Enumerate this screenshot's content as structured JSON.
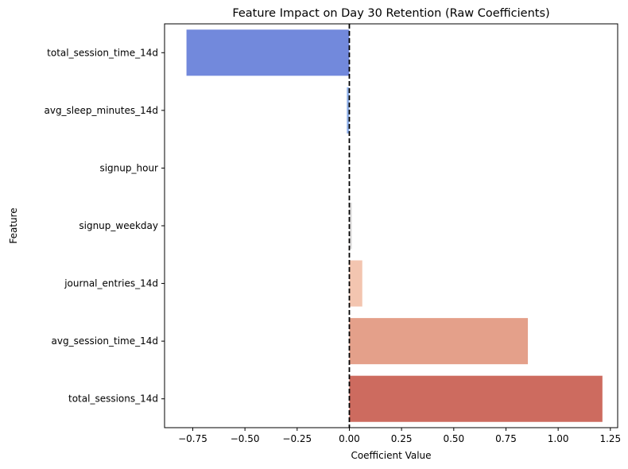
{
  "chart_data": {
    "type": "bar",
    "orientation": "horizontal",
    "title": "Feature Impact on Day 30 Retention (Raw Coefficients)",
    "xlabel": "Coefficient Value",
    "ylabel": "Feature",
    "categories": [
      "total_session_time_14d",
      "avg_sleep_minutes_14d",
      "signup_hour",
      "signup_weekday",
      "journal_entries_14d",
      "avg_session_time_14d",
      "total_sessions_14d"
    ],
    "values": [
      -0.78,
      -0.012,
      0.0,
      0.012,
      0.062,
      0.855,
      1.212
    ],
    "colors": [
      "#7289dc",
      "#8fb0e9",
      "#c5d5ea",
      "#dddcdc",
      "#f3c5b0",
      "#e4a08a",
      "#cd6b5f"
    ],
    "xlim": [
      -0.885,
      1.285
    ],
    "xticks": [
      -0.75,
      -0.5,
      -0.25,
      0.0,
      0.25,
      0.5,
      0.75,
      1.0,
      1.25
    ],
    "xtick_labels": [
      "−0.75",
      "−0.50",
      "−0.25",
      "0.00",
      "0.25",
      "0.50",
      "0.75",
      "1.00",
      "1.25"
    ],
    "reference_line": {
      "x": 0,
      "style": "dashed",
      "color": "#000000"
    },
    "grid": false,
    "legend": "none"
  }
}
